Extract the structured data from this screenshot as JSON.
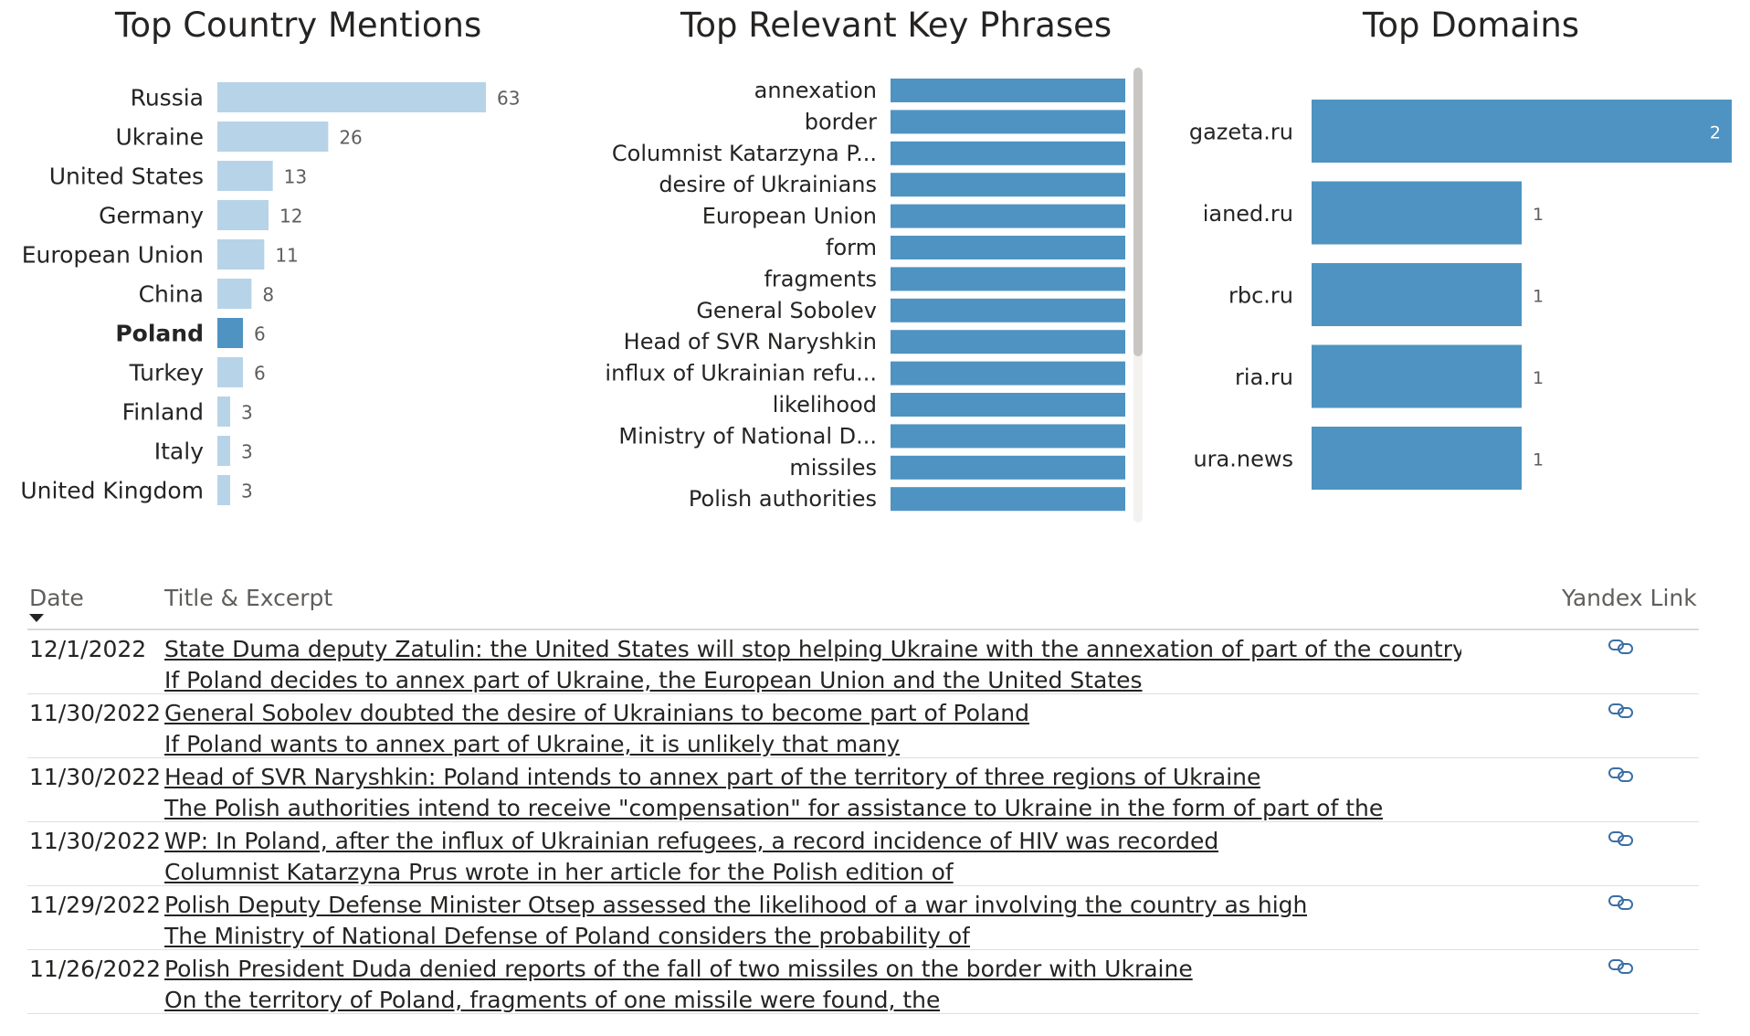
{
  "country_panel": {
    "title": "Top Country Mentions"
  },
  "phrases_panel": {
    "title": "Top Relevant Key Phrases"
  },
  "domains_panel": {
    "title": "Top Domains"
  },
  "colors": {
    "light_bar": "#b7d3e8",
    "dark_bar": "#4f93c2",
    "label": "#252423",
    "value": "#605e5c"
  },
  "chart_data": [
    {
      "type": "bar",
      "title": "Top Country Mentions",
      "orientation": "horizontal",
      "categories": [
        "Russia",
        "Ukraine",
        "United States",
        "Germany",
        "European Union",
        "China",
        "Poland",
        "Turkey",
        "Finland",
        "Italy",
        "United Kingdom"
      ],
      "values": [
        63,
        26,
        13,
        12,
        11,
        8,
        6,
        6,
        3,
        3,
        3
      ],
      "highlighted": "Poland",
      "xlim": [
        0,
        63
      ]
    },
    {
      "type": "bar",
      "title": "Top Relevant Key Phrases",
      "orientation": "horizontal",
      "categories": [
        "annexation",
        "border",
        "Columnist Katarzyna P...",
        "desire of Ukrainians",
        "European Union",
        "form",
        "fragments",
        "General Sobolev",
        "Head of SVR Naryshkin",
        "influx of Ukrainian refu...",
        "likelihood",
        "Ministry of National D...",
        "missiles",
        "Polish authorities"
      ],
      "values": [
        1,
        1,
        1,
        1,
        1,
        1,
        1,
        1,
        1,
        1,
        1,
        1,
        1,
        1
      ],
      "xlim": [
        0,
        1
      ]
    },
    {
      "type": "bar",
      "title": "Top Domains",
      "orientation": "horizontal",
      "categories": [
        "gazeta.ru",
        "ianed.ru",
        "rbc.ru",
        "ria.ru",
        "ura.news"
      ],
      "values": [
        2,
        1,
        1,
        1,
        1
      ],
      "xlim": [
        0,
        2
      ]
    }
  ],
  "table": {
    "headers": {
      "date": "Date",
      "title": "Title & Excerpt",
      "link": "Yandex Link"
    },
    "rows": [
      {
        "date": "12/1/2022",
        "title": "State Duma deputy Zatulin: the United States will stop helping Ukraine with the annexation of part of the country by Poland",
        "excerpt": "If Poland decides to annex part of Ukraine, the European Union and the United States"
      },
      {
        "date": "11/30/2022",
        "title": "General Sobolev doubted the desire of Ukrainians to become part of Poland",
        "excerpt": "If Poland wants to annex part of Ukraine, it is unlikely that many"
      },
      {
        "date": "11/30/2022",
        "title": "Head of SVR Naryshkin: Poland intends to annex part of the territory of three regions of Ukraine",
        "excerpt": "The Polish authorities intend to receive \"compensation\" for assistance to Ukraine in the form of part of the"
      },
      {
        "date": "11/30/2022",
        "title": "WP: In Poland, after the influx of Ukrainian refugees, a record incidence of HIV was recorded",
        "excerpt": "Columnist Katarzyna Prus wrote in her article for the Polish edition of"
      },
      {
        "date": "11/29/2022",
        "title": "Polish Deputy Defense Minister Otsep assessed the likelihood of a war involving the country as high",
        "excerpt": "The Ministry of National Defense of Poland considers the probability of"
      },
      {
        "date": "11/26/2022",
        "title": "Polish President Duda denied reports of the fall of two missiles on the border with Ukraine",
        "excerpt": "On the territory of Poland, fragments of one missile were found, the"
      }
    ],
    "link_icon": "link-icon"
  }
}
